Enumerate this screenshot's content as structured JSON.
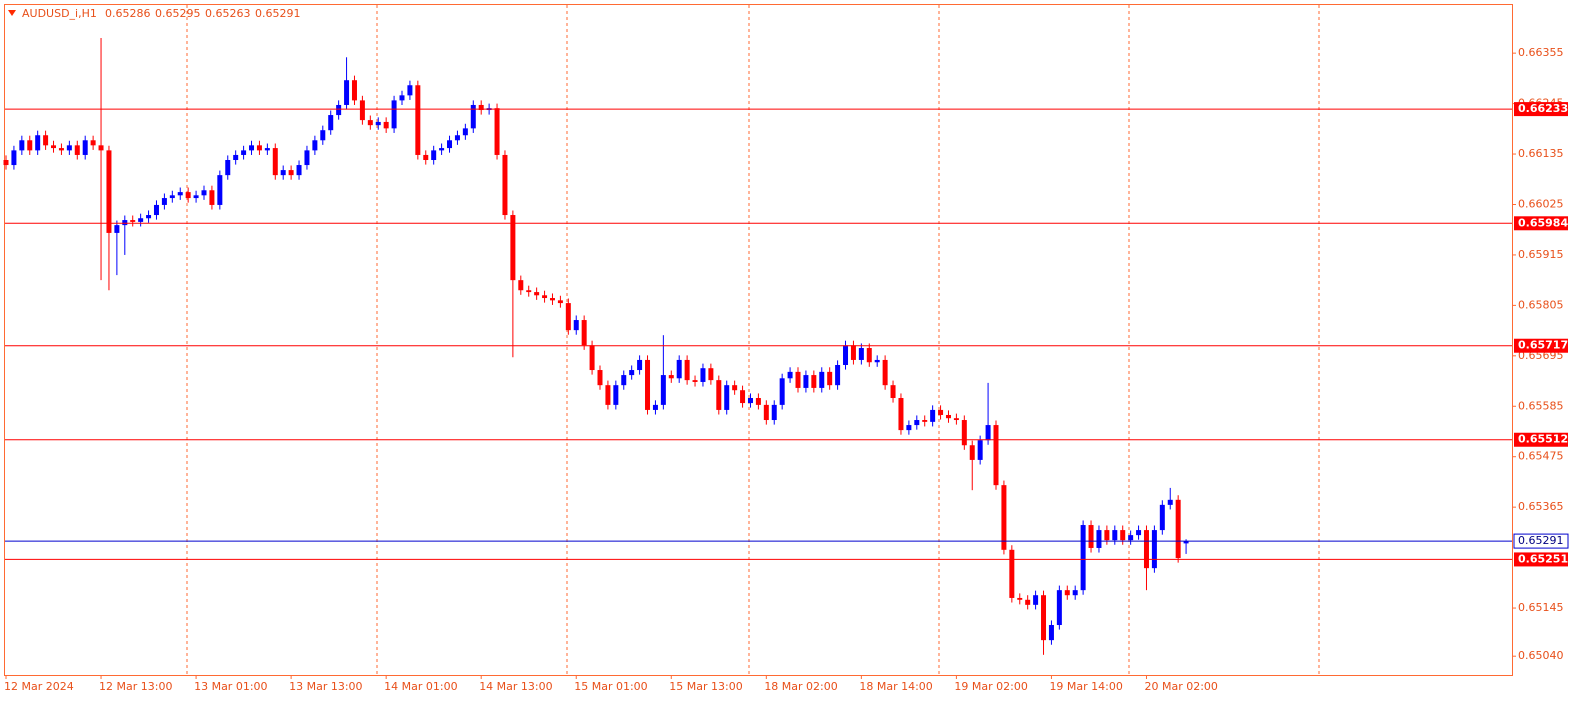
{
  "chart_data": {
    "type": "candlestick",
    "symbol": "AUDUSD_i,H1",
    "up_color": "#0000ff",
    "down_color": "#ff0000",
    "ylim": [
      0.64999,
      0.6646
    ],
    "yticks": [
      0.66355,
      0.66245,
      0.66135,
      0.66025,
      0.65915,
      0.65805,
      0.65695,
      0.65585,
      0.65475,
      0.65365,
      0.65145,
      {
        "value": 0.6504,
        "label": "0.65040"
      }
    ],
    "xticks": [
      {
        "value": 0,
        "label": "12 Mar 2024"
      },
      {
        "value": 12,
        "label": "12 Mar 13:00"
      },
      {
        "value": 24,
        "label": "13 Mar 01:00"
      },
      {
        "value": 36,
        "label": "13 Mar 13:00"
      },
      {
        "value": 48,
        "label": "14 Mar 01:00"
      },
      {
        "value": 60,
        "label": "14 Mar 13:00"
      },
      {
        "value": 72,
        "label": "15 Mar 01:00"
      },
      {
        "value": 84,
        "label": "15 Mar 13:00"
      },
      {
        "value": 96,
        "label": "18 Mar 02:00"
      },
      {
        "value": 108,
        "label": "18 Mar 14:00"
      },
      {
        "value": 120,
        "label": "19 Mar 02:00"
      },
      {
        "value": 132,
        "label": "19 Mar 14:00"
      },
      {
        "value": 144,
        "label": "20 Mar 02:00"
      }
    ],
    "levels": [
      {
        "value": 0.66233,
        "color": "#ff0000"
      },
      {
        "value": 0.65984,
        "color": "#ff0000"
      },
      {
        "value": 0.65717,
        "color": "#ff0000"
      },
      {
        "value": 0.65512,
        "color": "#ff0000"
      },
      {
        "value": 0.65251,
        "color": "#ff0000"
      }
    ],
    "bid": {
      "value": 0.65291,
      "color": "#0000cd"
    },
    "open": [
      0.66122,
      0.66111,
      0.66143,
      0.66165,
      0.66143,
      0.66176,
      0.66154,
      0.66148,
      0.66143,
      0.66154,
      0.66133,
      0.66165,
      0.66154,
      0.66143,
      0.65963,
      0.6598,
      0.65991,
      0.65987,
      0.65995,
      0.66002,
      0.66024,
      0.66039,
      0.66045,
      0.66052,
      0.66039,
      0.66045,
      0.66056,
      0.66024,
      0.66089,
      0.66122,
      0.66133,
      0.66143,
      0.66154,
      0.66143,
      0.66148,
      0.66089,
      0.661,
      0.66089,
      0.66111,
      0.66143,
      0.66165,
      0.66187,
      0.6622,
      0.66242,
      0.66296,
      0.66252,
      0.66209,
      0.66198,
      0.66205,
      0.66191,
      0.66252,
      0.66263,
      0.66285,
      0.66133,
      0.66122,
      0.66143,
      0.66148,
      0.66165,
      0.66176,
      0.66191,
      0.66242,
      0.66231,
      0.66235,
      0.66133,
      0.66002,
      0.6586,
      0.65838,
      0.65834,
      0.65827,
      0.65821,
      0.65816,
      0.6581,
      0.65751,
      0.65773,
      0.65718,
      0.65664,
      0.65631,
      0.65588,
      0.65631,
      0.65653,
      0.65664,
      0.65686,
      0.65577,
      0.65588,
      0.65653,
      0.65646,
      0.65686,
      0.65642,
      0.65638,
      0.65668,
      0.65642,
      0.65577,
      0.65631,
      0.6562,
      0.65592,
      0.65603,
      0.65588,
      0.65555,
      0.65588,
      0.65646,
      0.6566,
      0.65625,
      0.65653,
      0.65625,
      0.6566,
      0.65631,
      0.65675,
      0.65718,
      0.65686,
      0.65712,
      0.65681,
      0.65686,
      0.65631,
      0.65603,
      0.65533,
      0.65544,
      0.65555,
      0.65551,
      0.65577,
      0.65566,
      0.65559,
      0.65555,
      0.655,
      0.65468,
      0.65511,
      0.65544,
      0.65413,
      0.65272,
      0.65167,
      0.65163,
      0.65152,
      0.65173,
      0.65075,
      0.65108,
      0.65184,
      0.65173,
      0.65184,
      0.65326,
      0.65276,
      0.65315,
      0.65293,
      0.65315,
      0.65293,
      0.65304,
      0.65315,
      0.65232,
      0.65315,
      0.6537,
      0.65381,
      0.65286
    ],
    "high": [
      0.66132,
      0.66153,
      0.66175,
      0.66175,
      0.66186,
      0.66186,
      0.66164,
      0.66158,
      0.66164,
      0.66164,
      0.66175,
      0.66175,
      0.66388,
      0.66153,
      0.6599,
      0.66001,
      0.66001,
      0.66005,
      0.66012,
      0.66034,
      0.66049,
      0.66055,
      0.66062,
      0.66062,
      0.66055,
      0.66066,
      0.66066,
      0.66099,
      0.66132,
      0.66143,
      0.66153,
      0.66164,
      0.66164,
      0.66158,
      0.66158,
      0.6611,
      0.6611,
      0.66121,
      0.66153,
      0.66175,
      0.66197,
      0.6623,
      0.66252,
      0.66346,
      0.66306,
      0.66262,
      0.66219,
      0.66215,
      0.66215,
      0.66262,
      0.66273,
      0.66295,
      0.66295,
      0.66143,
      0.66153,
      0.66158,
      0.66175,
      0.66186,
      0.66201,
      0.66252,
      0.66252,
      0.66245,
      0.66245,
      0.66143,
      0.66012,
      0.6587,
      0.65848,
      0.65844,
      0.65837,
      0.65831,
      0.65826,
      0.6582,
      0.65783,
      0.65783,
      0.65728,
      0.65674,
      0.65641,
      0.65641,
      0.65663,
      0.65674,
      0.65696,
      0.65696,
      0.65598,
      0.6574,
      0.65663,
      0.65696,
      0.65696,
      0.65652,
      0.65678,
      0.65678,
      0.65652,
      0.65641,
      0.65641,
      0.6563,
      0.65613,
      0.65613,
      0.65598,
      0.65598,
      0.65656,
      0.6567,
      0.6567,
      0.65663,
      0.65663,
      0.6567,
      0.6567,
      0.65685,
      0.65728,
      0.65728,
      0.65722,
      0.65722,
      0.65696,
      0.65696,
      0.65641,
      0.65613,
      0.65554,
      0.65565,
      0.65565,
      0.65587,
      0.65587,
      0.65576,
      0.65569,
      0.65565,
      0.6551,
      0.65521,
      0.65636,
      0.65554,
      0.65423,
      0.65282,
      0.65177,
      0.65173,
      0.65183,
      0.65183,
      0.65118,
      0.65194,
      0.65194,
      0.65194,
      0.65336,
      0.65336,
      0.65325,
      0.65325,
      0.65325,
      0.65325,
      0.65314,
      0.65325,
      0.65325,
      0.65325,
      0.6538,
      0.65407,
      0.65391,
      0.65295
    ],
    "low": [
      0.66101,
      0.66101,
      0.66133,
      0.66133,
      0.66133,
      0.66144,
      0.66138,
      0.66133,
      0.66133,
      0.66123,
      0.66123,
      0.66144,
      0.6586,
      0.65838,
      0.65871,
      0.65915,
      0.65977,
      0.65977,
      0.65985,
      0.65992,
      0.66014,
      0.66029,
      0.66035,
      0.66029,
      0.66029,
      0.66035,
      0.66014,
      0.66014,
      0.66079,
      0.66112,
      0.66123,
      0.66133,
      0.66133,
      0.66133,
      0.66079,
      0.66079,
      0.66079,
      0.66079,
      0.66101,
      0.66133,
      0.66155,
      0.66177,
      0.6621,
      0.66232,
      0.66242,
      0.66199,
      0.66188,
      0.66188,
      0.66181,
      0.66181,
      0.66242,
      0.66253,
      0.66123,
      0.66112,
      0.66112,
      0.66133,
      0.66138,
      0.66155,
      0.66166,
      0.66181,
      0.66221,
      0.66221,
      0.66123,
      0.65992,
      0.65692,
      0.65828,
      0.65824,
      0.65817,
      0.65811,
      0.65806,
      0.658,
      0.65741,
      0.65741,
      0.65708,
      0.65654,
      0.65621,
      0.65578,
      0.65578,
      0.65621,
      0.65643,
      0.65654,
      0.65567,
      0.65567,
      0.65578,
      0.65636,
      0.65636,
      0.65632,
      0.65628,
      0.65628,
      0.65632,
      0.65567,
      0.65567,
      0.6561,
      0.65582,
      0.65582,
      0.65578,
      0.65545,
      0.65545,
      0.65578,
      0.65636,
      0.65615,
      0.65615,
      0.65615,
      0.65615,
      0.65621,
      0.65621,
      0.65665,
      0.65676,
      0.65676,
      0.65671,
      0.65671,
      0.65621,
      0.65593,
      0.65523,
      0.65523,
      0.65534,
      0.65541,
      0.65541,
      0.65556,
      0.65549,
      0.65545,
      0.6549,
      0.65402,
      0.65458,
      0.65501,
      0.65403,
      0.65262,
      0.65157,
      0.65153,
      0.65142,
      0.65142,
      0.65043,
      0.65065,
      0.65098,
      0.65163,
      0.65163,
      0.65174,
      0.65266,
      0.65266,
      0.65283,
      0.65283,
      0.65283,
      0.65283,
      0.65294,
      0.65184,
      0.65222,
      0.65305,
      0.6536,
      0.65244,
      0.65263
    ],
    "close": [
      0.66111,
      0.66143,
      0.66165,
      0.66143,
      0.66176,
      0.66154,
      0.66148,
      0.66143,
      0.66154,
      0.66133,
      0.66165,
      0.66154,
      0.66143,
      0.65963,
      0.6598,
      0.65991,
      0.65987,
      0.65995,
      0.66002,
      0.66024,
      0.66039,
      0.66045,
      0.66052,
      0.66039,
      0.66045,
      0.66056,
      0.66024,
      0.66089,
      0.66122,
      0.66133,
      0.66143,
      0.66154,
      0.66143,
      0.66148,
      0.66089,
      0.661,
      0.66089,
      0.66111,
      0.66143,
      0.66165,
      0.66187,
      0.6622,
      0.66242,
      0.66296,
      0.66252,
      0.66209,
      0.66198,
      0.66205,
      0.66191,
      0.66252,
      0.66263,
      0.66285,
      0.66133,
      0.66122,
      0.66143,
      0.66148,
      0.66165,
      0.66176,
      0.66191,
      0.66242,
      0.66231,
      0.66235,
      0.66133,
      0.66002,
      0.6586,
      0.65838,
      0.65834,
      0.65827,
      0.65821,
      0.65816,
      0.6581,
      0.65751,
      0.65773,
      0.65718,
      0.65664,
      0.65631,
      0.65588,
      0.65631,
      0.65653,
      0.65664,
      0.65686,
      0.65577,
      0.65588,
      0.65653,
      0.65646,
      0.65686,
      0.65642,
      0.65638,
      0.65668,
      0.65642,
      0.65577,
      0.65631,
      0.6562,
      0.65592,
      0.65603,
      0.65588,
      0.65555,
      0.65588,
      0.65646,
      0.6566,
      0.65625,
      0.65653,
      0.65625,
      0.6566,
      0.65631,
      0.65675,
      0.65718,
      0.65686,
      0.65712,
      0.65681,
      0.65686,
      0.65631,
      0.65603,
      0.65533,
      0.65544,
      0.65555,
      0.65551,
      0.65577,
      0.65566,
      0.65559,
      0.65555,
      0.655,
      0.65468,
      0.65511,
      0.65544,
      0.65413,
      0.65272,
      0.65167,
      0.65163,
      0.65152,
      0.65173,
      0.65075,
      0.65108,
      0.65184,
      0.65173,
      0.65184,
      0.65326,
      0.65276,
      0.65315,
      0.65293,
      0.65315,
      0.65293,
      0.65304,
      0.65315,
      0.65232,
      0.65315,
      0.6537,
      0.65381,
      0.65254,
      0.65291
    ]
  }
}
